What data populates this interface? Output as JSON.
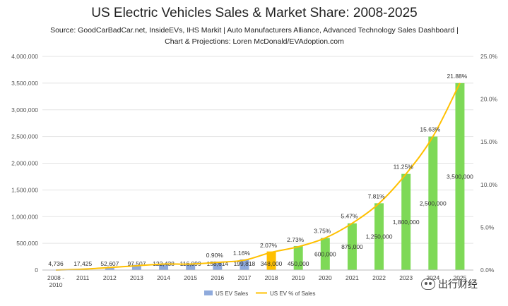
{
  "chart_data": {
    "type": "bar",
    "title": "US Electric Vehicles Sales & Market Share: 2008-2025",
    "subtitle_lines": [
      "Source: GoodCarBadCar.net, InsideEVs, IHS Markit | Auto Manufacturers Alliance, Advanced Technology Sales Dashboard |",
      "Chart & Projections: Loren McDonald/EVAdoption.com"
    ],
    "categories": [
      "2008 -\n2010",
      "2011",
      "2012",
      "2013",
      "2014",
      "2015",
      "2016",
      "2017",
      "2018",
      "2019",
      "2020",
      "2021",
      "2022",
      "2023",
      "2024",
      "2025"
    ],
    "series": [
      {
        "name": "US EV Sales",
        "type": "bar",
        "axis": "left",
        "values": [
          4736,
          17425,
          52607,
          97507,
          122438,
          116099,
          158614,
          199818,
          348000,
          450000,
          600000,
          875000,
          1250000,
          1800000,
          2500000,
          3500000
        ],
        "labels": [
          "4,736",
          "17,425",
          "52,607",
          "97,507",
          "122,438",
          "116,099",
          "158,614",
          "199,818",
          "348,000",
          "450,000",
          "600,000",
          "875,000",
          "1,250,000",
          "1,800,000",
          "2,500,000",
          "3,500,000"
        ],
        "bar_colors": [
          "#8faadc",
          "#8faadc",
          "#8faadc",
          "#8faadc",
          "#8faadc",
          "#8faadc",
          "#8faadc",
          "#8faadc",
          "#ffc000",
          "#7ed957",
          "#7ed957",
          "#7ed957",
          "#7ed957",
          "#7ed957",
          "#7ed957",
          "#7ed957"
        ]
      },
      {
        "name": "US EV % of Sales",
        "type": "line",
        "axis": "right",
        "color": "#ffc000",
        "values": [
          0.0,
          0.1,
          0.3,
          0.5,
          0.7,
          0.7,
          0.9,
          1.16,
          2.07,
          2.73,
          3.75,
          5.47,
          7.81,
          11.25,
          15.63,
          21.88
        ],
        "labels": [
          "",
          "",
          "",
          "",
          "",
          "",
          "0.90%",
          "1.16%",
          "2.07%",
          "2.73%",
          "3.75%",
          "5.47%",
          "7.81%",
          "11.25%",
          "15.63%",
          "21.88%"
        ]
      }
    ],
    "y_left": {
      "lim": [
        0,
        4000000
      ],
      "ticks": [
        0,
        500000,
        1000000,
        1500000,
        2000000,
        2500000,
        3000000,
        3500000,
        4000000
      ],
      "tick_labels": [
        "0",
        "500,000",
        "1,000,000",
        "1,500,000",
        "2,000,000",
        "2,500,000",
        "3,000,000",
        "3,500,000",
        "4,000,000"
      ]
    },
    "y_right": {
      "lim": [
        0,
        25
      ],
      "ticks": [
        0,
        5,
        10,
        15,
        20,
        25
      ],
      "tick_labels": [
        "0.0%",
        "5.0%",
        "10.0%",
        "15.0%",
        "20.0%",
        "25.0%"
      ]
    },
    "grid": true,
    "legend_position": "bottom",
    "legend_colors": {
      "bar": "#8faadc",
      "line": "#ffc000"
    }
  },
  "watermark": {
    "text": "出行财经",
    "icon": "wechat-icon"
  }
}
